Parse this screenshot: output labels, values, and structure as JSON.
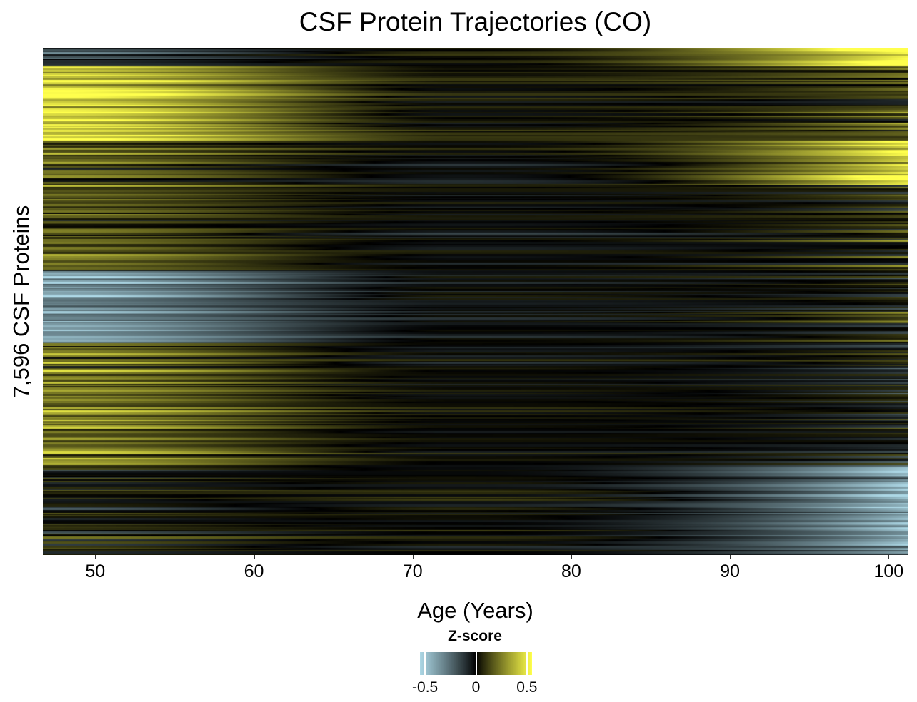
{
  "chart_data": {
    "type": "heatmap",
    "title": "CSF Protein Trajectories (CO)",
    "xlabel": "Age (Years)",
    "ylabel": "7,596 CSF Proteins",
    "xlim": [
      46.7,
      101.2
    ],
    "xticks": [
      50,
      60,
      70,
      80,
      90,
      100
    ],
    "xtick_labels": [
      "50",
      "60",
      "70",
      "80",
      "90",
      "100"
    ],
    "n_rows": 7596,
    "colorbar": {
      "title": "Z-score",
      "range": [
        -0.55,
        0.55
      ],
      "ticks": [
        -0.5,
        0,
        0.5
      ],
      "tick_labels": [
        "-0.5",
        "0",
        "0.5"
      ],
      "colors": {
        "low": "#add8e6",
        "mid": "#000000",
        "high": "#ffff4d"
      }
    },
    "row_blocks": [
      {
        "rows": "top 0-3%",
        "trend": "low to mid, rising to high after age 90",
        "z_start": -0.3,
        "z_end": 0.55
      },
      {
        "rows": "3-18%",
        "trend": "high at 50, falling to ~0 by 70, mixed later",
        "z_start": 0.5,
        "z_end": 0.05
      },
      {
        "rows": "18-27%",
        "trend": "moderate positive early, rising to high after 90",
        "z_start": 0.15,
        "z_end": 0.5
      },
      {
        "rows": "27-45%",
        "trend": "mixed near zero with rows high at age 50",
        "z_start": 0.2,
        "z_end": 0.1
      },
      {
        "rows": "45-58%",
        "trend": "low at 50, near zero later",
        "z_start": -0.4,
        "z_end": 0.0
      },
      {
        "rows": "58-82%",
        "trend": "moderate positive early, near zero late",
        "z_start": 0.2,
        "z_end": -0.05
      },
      {
        "rows": "82-100%",
        "trend": "mixed early, falling to low after 90",
        "z_start": 0.05,
        "z_end": -0.55
      }
    ]
  }
}
